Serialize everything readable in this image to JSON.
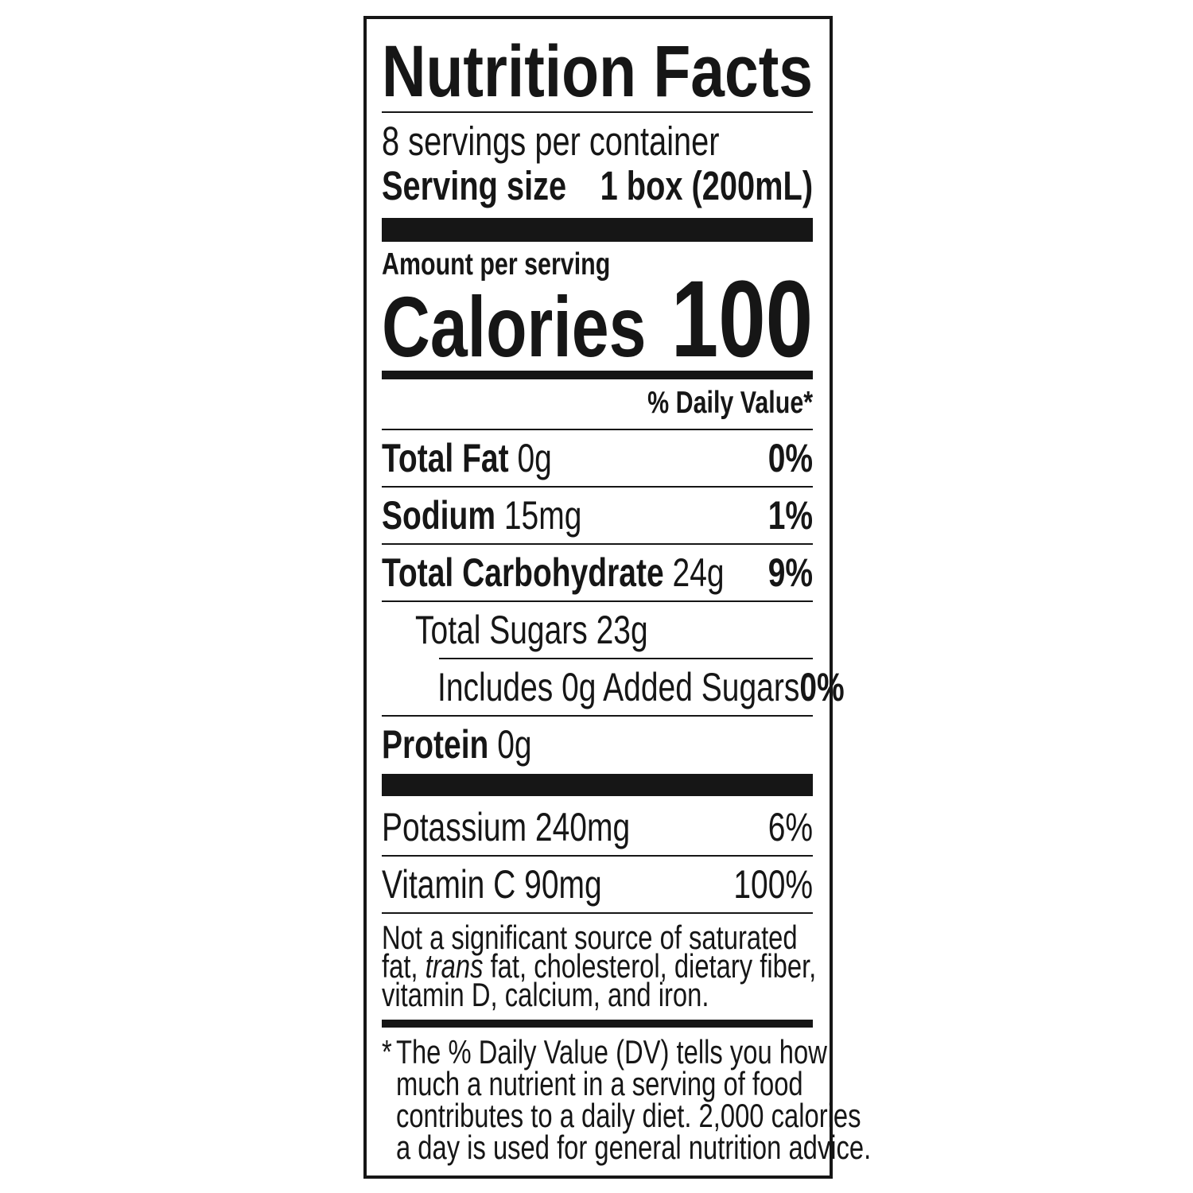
{
  "title": "Nutrition Facts",
  "servings_per_container": "8 servings per container",
  "serving_size": {
    "label": "Serving size",
    "value": "1 box (200mL)"
  },
  "amount_per_serving": "Amount per serving",
  "calories": {
    "label": "Calories",
    "value": "100"
  },
  "daily_value_header": "% Daily Value*",
  "nutrients": [
    {
      "name": "Total Fat",
      "amount": "0g",
      "dv": "0%"
    },
    {
      "name": "Sodium",
      "amount": "15mg",
      "dv": "1%"
    },
    {
      "name": "Total Carbohydrate",
      "amount": "24g",
      "dv": "9%"
    },
    {
      "name": "Total Sugars 23g"
    },
    {
      "name": "Includes 0g Added Sugars",
      "dv": "0%"
    },
    {
      "name": "Protein",
      "amount": "0g"
    }
  ],
  "micronutrients": [
    {
      "name": "Potassium 240mg",
      "dv": "6%"
    },
    {
      "name": "Vitamin C 90mg",
      "dv": "100%"
    }
  ],
  "not_significant": {
    "line1": "Not a significant source of saturated",
    "line2_a": "fat, ",
    "line2_italic": "trans",
    "line2_b": " fat, cholesterol, dietary fiber,",
    "line3": "vitamin D, calcium, and iron."
  },
  "footnote": {
    "asterisk": "*",
    "lines": [
      "The % Daily Value (DV) tells you how",
      "much a nutrient in a serving of food",
      "contributes to a daily diet. 2,000 calories",
      "a day is used for general nutrition advice."
    ]
  }
}
